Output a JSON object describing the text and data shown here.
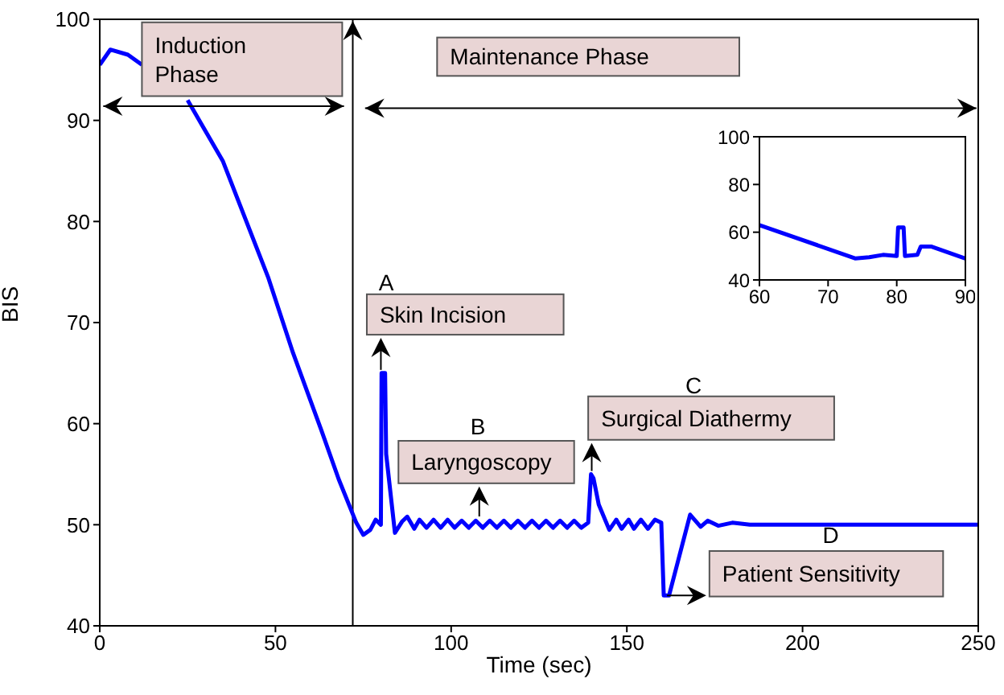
{
  "chart_data": [
    {
      "type": "line",
      "xlabel": "Time (sec)",
      "ylabel": "BIS",
      "xlim": [
        0,
        250
      ],
      "xticks": [
        0,
        50,
        100,
        150,
        200,
        250
      ],
      "ylim": [
        40,
        100
      ],
      "yticks": [
        40,
        50,
        60,
        70,
        80,
        90,
        100
      ],
      "x": [
        0,
        3,
        8,
        12,
        18,
        25,
        35,
        48,
        55,
        63,
        68,
        73,
        75,
        77,
        78.5,
        80,
        80.2,
        81.2,
        81.5,
        84,
        86,
        87.5,
        89.5,
        91,
        93,
        95,
        97,
        99,
        101,
        103,
        105,
        107,
        109,
        111,
        113,
        115,
        117,
        119,
        121,
        123,
        125,
        127,
        129,
        131,
        133,
        135,
        137,
        139,
        139.8,
        140.5,
        142,
        145,
        147,
        148.5,
        150.5,
        152,
        154,
        156,
        158,
        159.8,
        160.5,
        162,
        165,
        168,
        171,
        173,
        176,
        180,
        185,
        190,
        200,
        210,
        220,
        230,
        240,
        250
      ],
      "series": [
        {
          "color": "#0000ff",
          "values": [
            95.5,
            97,
            96.5,
            95.5,
            null,
            92,
            86,
            74.4,
            67,
            59.4,
            54.5,
            50.2,
            49.0,
            49.5,
            50.5,
            50,
            65,
            65,
            57,
            49.2,
            50.3,
            50.8,
            49.6,
            50.5,
            49.7,
            50.5,
            49.7,
            50.5,
            49.7,
            50.4,
            49.7,
            50.4,
            49.7,
            50.4,
            49.7,
            50.4,
            49.7,
            50.4,
            49.7,
            50.4,
            49.7,
            50.4,
            49.7,
            50.4,
            49.7,
            50.4,
            49.7,
            50.2,
            55,
            54.6,
            52,
            49.5,
            50.5,
            49.6,
            50.5,
            49.6,
            50.5,
            49.6,
            50.5,
            50.2,
            43,
            43,
            47,
            51,
            49.8,
            50.4,
            49.9,
            50.2,
            50,
            50,
            50,
            50,
            50,
            50,
            50,
            50
          ]
        }
      ],
      "ref_lines": [
        {
          "axis": "x",
          "value": 72,
          "color": "#000000"
        }
      ],
      "annotations": [
        "Induction Phase",
        "Maintenance Phase",
        "A",
        {
          "text": "Skin Incision",
          "x": 80,
          "y": 65
        },
        "B",
        {
          "text": "Laryngoscopy",
          "x": 108,
          "y": 50.5
        },
        "C",
        {
          "text": "Surgical Diathermy",
          "x": 140,
          "y": 55
        },
        "D",
        {
          "text": "Patient Sensitivity",
          "x": 160.5,
          "y": 43
        }
      ],
      "grid": false,
      "legend": false,
      "marker": "none",
      "line_style": "solid"
    },
    {
      "type": "line",
      "xlim": [
        60,
        90
      ],
      "xticks": [
        60,
        70,
        80,
        90
      ],
      "ylim": [
        40,
        100
      ],
      "yticks": [
        40,
        60,
        80,
        100
      ],
      "x": [
        60,
        74,
        76,
        78,
        80,
        80.2,
        81,
        81.2,
        83,
        83.5,
        85,
        90
      ],
      "series": [
        {
          "color": "#0000ff",
          "values": [
            63,
            49,
            49.5,
            50.5,
            50,
            62,
            62,
            50,
            50.5,
            54,
            54,
            49
          ]
        }
      ],
      "grid": false,
      "legend": false,
      "marker": "none",
      "line_style": "solid"
    }
  ]
}
